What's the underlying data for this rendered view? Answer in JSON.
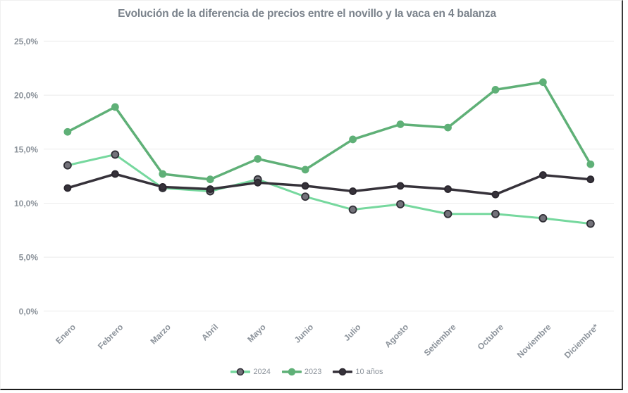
{
  "title": "Evolución de la diferencia de precios entre el novillo y la vaca en 4 balanza",
  "colors": {
    "title_text": "#7b838c",
    "axis_text": "#8b929a",
    "gridline": "#ebebeb",
    "series_2024_line": "#76d89e",
    "series_2024_marker_fill": "#73727a",
    "series_2024_marker_stroke": "#2f2e35",
    "series_2023": "#5fb077",
    "series_10anios": "#36323a",
    "frame_border": "#1c1c1c"
  },
  "chart_data": {
    "type": "line",
    "title": "Evolución de la diferencia de precios entre el novillo y la vaca en 4 balanza",
    "categories": [
      "Enero",
      "Febrero",
      "Marzo",
      "Abril",
      "Mayo",
      "Junio",
      "Julio",
      "Agosto",
      "Setiembre",
      "Octubre",
      "Noviembre",
      "Diciembre*"
    ],
    "series": [
      {
        "name": "2024",
        "values": [
          13.5,
          14.5,
          11.4,
          11.1,
          12.2,
          10.6,
          9.4,
          9.9,
          9.0,
          9.0,
          8.6,
          8.1
        ],
        "line_color": "#76d89e",
        "marker_fill": "#73727a",
        "marker_stroke": "#2f2e35",
        "line_width": 3,
        "marker_radius": 5
      },
      {
        "name": "2023",
        "values": [
          16.6,
          18.9,
          12.7,
          12.2,
          14.1,
          13.1,
          15.9,
          17.3,
          17.0,
          20.5,
          21.2,
          13.6
        ],
        "line_color": "#5fb077",
        "marker_fill": "#5fb077",
        "marker_stroke": "#5fb077",
        "line_width": 3.5,
        "marker_radius": 4.5
      },
      {
        "name": "10 años",
        "values": [
          11.4,
          12.7,
          11.5,
          11.3,
          11.9,
          11.6,
          11.1,
          11.6,
          11.3,
          10.8,
          12.6,
          12.2
        ],
        "line_color": "#36323a",
        "marker_fill": "#36323a",
        "marker_stroke": "#2a262e",
        "line_width": 3.5,
        "marker_radius": 4.5
      }
    ],
    "xlabel": "",
    "ylabel": "",
    "ylim": [
      0,
      25
    ],
    "ytick_step": 5,
    "ytick_labels": [
      "0,0%",
      "5,0%",
      "10,0%",
      "15,0%",
      "20,0%",
      "25,0%"
    ],
    "grid": true,
    "legend_position": "bottom",
    "x_labels_rotation_deg": -45
  }
}
